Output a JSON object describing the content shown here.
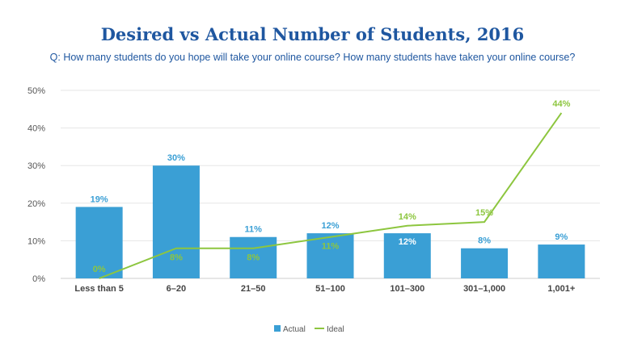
{
  "chart_data": {
    "type": "bar",
    "title": "Desired vs Actual Number of Students, 2016",
    "subtitle": "Q: How many students do you hope will take your online course? How many students have taken your online course?",
    "categories": [
      "Less than 5",
      "6–20",
      "21–50",
      "51–100",
      "101–300",
      "301–1,000",
      "1,001+"
    ],
    "ylim": [
      0,
      50
    ],
    "yticks": [
      "0%",
      "10%",
      "20%",
      "30%",
      "40%",
      "50%"
    ],
    "grid": true,
    "legend_position": "bottom",
    "series": [
      {
        "name": "Actual",
        "type": "bar",
        "color": "#3a9fd5",
        "values": [
          19,
          30,
          11,
          12,
          12,
          8,
          9
        ],
        "labels": [
          "19%",
          "30%",
          "11%",
          "12%",
          "12%",
          "8%",
          "9%"
        ]
      },
      {
        "name": "Ideal",
        "type": "line",
        "color": "#8dc63f",
        "values": [
          0,
          8,
          8,
          11,
          14,
          15,
          44
        ],
        "labels": [
          "0%",
          "8%",
          "8%",
          "11%",
          "14%",
          "15%",
          "44%"
        ]
      }
    ]
  }
}
